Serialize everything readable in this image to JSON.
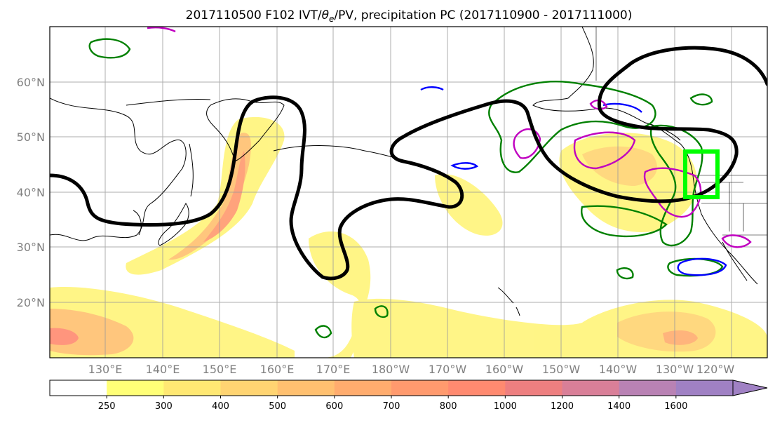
{
  "title": {
    "prefix": "2017110500 F102 IVT/",
    "theta": "θ",
    "theta_sub": "e",
    "suffix": "/PV, precipitation PC (2017110900 - 2017111000)"
  },
  "map": {
    "lat_labels": [
      "60°N",
      "50°N",
      "40°N",
      "30°N",
      "20°N"
    ],
    "lon_labels": [
      "130°E",
      "140°E",
      "150°E",
      "160°E",
      "170°E",
      "180°W",
      "170°W",
      "160°W",
      "150°W",
      "140°W",
      "130°W",
      "120°W"
    ],
    "lat_values": [
      60,
      50,
      40,
      30,
      20
    ],
    "lon_values": [
      130,
      140,
      150,
      160,
      170,
      180,
      -170,
      -160,
      -150,
      -140,
      -130,
      -120
    ],
    "region_box_color": "#00ff00",
    "pv_contour_color": "#000000",
    "precip_contour_color": "#008000",
    "theta_neg_color": "#0000ff",
    "theta_pos_color": "#c000c0"
  },
  "colorbar": {
    "labels": [
      "250",
      "300",
      "400",
      "500",
      "600",
      "700",
      "800",
      "1000",
      "1200",
      "1400",
      "1600"
    ],
    "colors": [
      "#ffffff",
      "#ffff77",
      "#ffe873",
      "#ffd472",
      "#ffc070",
      "#ffac6e",
      "#ff9a6e",
      "#ff8a70",
      "#ee7f80",
      "#d97f98",
      "#b982b4",
      "#a081c4"
    ]
  }
}
